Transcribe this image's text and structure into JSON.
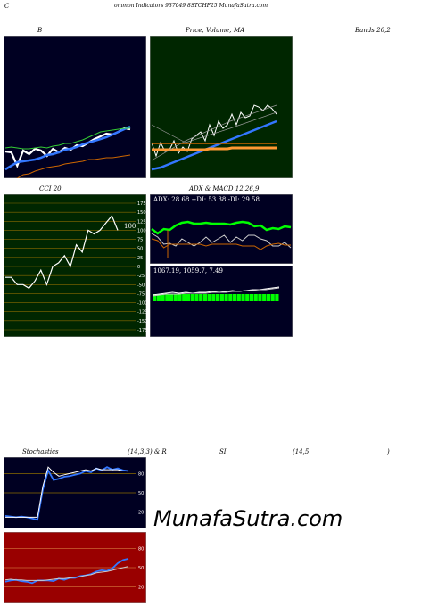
{
  "header": {
    "c": "C",
    "title": "ommon  Indicators 937049 8STCHF25 MunafaSutra.com"
  },
  "labels": {
    "b": "B",
    "price": "Price,",
    "volume": "Volume,",
    "ma": "MA",
    "bands": "Bands 20,2",
    "cci": "CCI 20",
    "adx_macd": "ADX  & MACD 12,26,9",
    "stoch": "Stochastics",
    "stoch_params": "(14,3,3) & R",
    "rsi": "SI",
    "rsi_params": "(14,5",
    "rsi_close": ")",
    "watermark": "MunafaSutra.com"
  },
  "colors": {
    "dark_bg": "#000022",
    "green_bg": "#002600",
    "red_bg": "#990000",
    "white": "#ffffff",
    "blue": "#3377ff",
    "green": "#00ff00",
    "orange": "#cc6600"
  },
  "chart_data": [
    {
      "id": "bollinger",
      "type": "line",
      "series": [
        {
          "color": "#ffffff",
          "values": [
            130,
            131,
            146,
            129,
            133,
            127,
            129,
            135,
            127,
            131,
            126,
            128,
            123,
            124,
            120,
            116,
            113,
            110,
            111,
            108,
            104,
            105
          ]
        },
        {
          "color": "#3377ff",
          "values": [
            150,
            146,
            142,
            141,
            140,
            139,
            137,
            134,
            133,
            131,
            128,
            127,
            125,
            122,
            120,
            118,
            116,
            114,
            111,
            108,
            105,
            102
          ]
        },
        {
          "color": "#cc6600",
          "values": [
            176,
            168,
            160,
            156,
            155,
            152,
            150,
            148,
            147,
            146,
            144,
            143,
            142,
            141,
            139,
            139,
            138,
            137,
            137,
            136,
            135,
            134
          ]
        },
        {
          "color": "#33cc33",
          "values": [
            126,
            125,
            126,
            127,
            127,
            126,
            125,
            126,
            124,
            123,
            121,
            121,
            119,
            117,
            114,
            111,
            108,
            107,
            106,
            105,
            104,
            104
          ]
        }
      ]
    },
    {
      "id": "price-volume-ma",
      "type": "line",
      "series": [
        {
          "color": "#ffffff",
          "values": [
            120,
            135,
            120,
            130,
            128,
            118,
            132,
            125,
            130,
            116,
            112,
            108,
            118,
            100,
            112,
            96,
            104,
            100,
            88,
            100,
            86,
            92,
            90,
            78,
            80,
            84,
            78,
            82,
            88
          ]
        },
        {
          "color": "#3377ff",
          "values": [
            150,
            149,
            148,
            146,
            144,
            142,
            140,
            138,
            136,
            134,
            132,
            130,
            128,
            126,
            124,
            122,
            120,
            118,
            116,
            114,
            112,
            110,
            108,
            106,
            104,
            102,
            100,
            98,
            96
          ]
        },
        {
          "color": "#ff9933",
          "values": [
            128,
            128,
            128,
            128,
            128,
            128,
            128,
            128,
            128,
            128,
            128,
            128,
            128,
            127,
            127,
            127,
            127,
            127,
            126,
            126,
            126,
            126,
            126,
            126,
            126,
            126,
            126,
            126,
            126
          ]
        },
        {
          "color": "#cc6600",
          "values": [
            121,
            121,
            121,
            121,
            121,
            121,
            121,
            121,
            121,
            121,
            121,
            121,
            121,
            121,
            121,
            121,
            121,
            121,
            121,
            121,
            121,
            121,
            121,
            121,
            121,
            121,
            121,
            121,
            121
          ]
        }
      ]
    },
    {
      "id": "cci",
      "type": "line",
      "ylim": [
        -175,
        175
      ],
      "yticks": [
        175,
        150,
        125,
        100,
        75,
        50,
        25,
        0,
        -25,
        -50,
        -75,
        -100,
        -125,
        -150,
        -175
      ],
      "value_label": "100",
      "series": [
        {
          "color": "#ffffff",
          "values": [
            -30,
            -30,
            -50,
            -50,
            -60,
            -40,
            -10,
            -50,
            0,
            10,
            30,
            0,
            60,
            40,
            100,
            90,
            100,
            120,
            140,
            100
          ]
        }
      ]
    },
    {
      "id": "adx",
      "type": "line",
      "label": "ADX: 28.68  +DI: 53.38  -DI: 29.58",
      "series": [
        {
          "color": "#00ff00",
          "values": [
            39,
            44,
            39,
            40,
            35,
            32,
            31,
            33,
            33,
            32,
            33,
            33,
            33,
            34,
            32,
            31,
            32,
            36,
            35,
            40,
            38,
            39,
            36,
            37
          ]
        },
        {
          "color": "#cccccc",
          "values": [
            44,
            48,
            56,
            55,
            58,
            50,
            54,
            58,
            54,
            48,
            54,
            50,
            46,
            54,
            48,
            52,
            46,
            46,
            50,
            52,
            58,
            58,
            54,
            60
          ]
        },
        {
          "color": "#cc6600",
          "values": [
            50,
            52,
            60,
            56,
            56,
            56,
            56,
            56,
            56,
            58,
            56,
            56,
            56,
            56,
            56,
            58,
            58,
            58,
            62,
            58,
            56,
            55,
            57,
            57
          ]
        }
      ]
    },
    {
      "id": "macd",
      "type": "bar",
      "label": "1067.19,  1059.7,  7.49",
      "values": [
        8,
        8,
        8,
        8,
        8,
        8,
        8,
        8,
        8,
        8,
        8,
        8,
        8,
        8,
        8,
        8,
        8,
        8,
        8,
        8,
        8,
        8,
        8,
        8,
        8,
        8,
        8,
        8,
        8,
        8
      ],
      "series": [
        {
          "color": "#ffffff",
          "values": [
            33,
            32,
            31,
            30,
            31,
            30,
            31,
            30,
            30,
            29,
            30,
            29,
            28,
            29,
            28,
            27,
            27,
            26,
            25,
            24
          ]
        },
        {
          "color": "#cccccc",
          "values": [
            34,
            33,
            32,
            32,
            32,
            31,
            31,
            31,
            31,
            30,
            30,
            30,
            29,
            29,
            28,
            28,
            27,
            27,
            26,
            25
          ]
        }
      ]
    },
    {
      "id": "stochastics",
      "type": "line",
      "ylim": [
        0,
        100
      ],
      "yticks": [
        80,
        50,
        20
      ],
      "series": [
        {
          "color": "#3377ff",
          "values": [
            14,
            13,
            12,
            13,
            12,
            10,
            8,
            55,
            85,
            70,
            72,
            75,
            76,
            78,
            80,
            84,
            82,
            88,
            85,
            90,
            86,
            88,
            85,
            84
          ]
        },
        {
          "color": "#ffffff",
          "values": [
            12,
            12,
            12,
            12,
            12,
            12,
            12,
            60,
            90,
            82,
            76,
            78,
            80,
            82,
            84,
            86,
            84,
            88,
            86,
            86,
            86,
            86,
            84,
            84
          ]
        }
      ]
    },
    {
      "id": "rsi",
      "type": "line",
      "ylim": [
        0,
        100
      ],
      "yticks": [
        80,
        50,
        20
      ],
      "series": [
        {
          "color": "#3377ff",
          "values": [
            28,
            30,
            31,
            29,
            28,
            26,
            30,
            30,
            30,
            29,
            33,
            31,
            34,
            34,
            37,
            38,
            40,
            44,
            46,
            45,
            49,
            57,
            62,
            64
          ]
        },
        {
          "color": "#cccccc",
          "values": [
            31,
            32,
            31,
            31,
            30,
            30,
            30,
            30,
            31,
            32,
            33,
            33,
            34,
            35,
            36,
            38,
            39,
            42,
            43,
            44,
            46,
            48,
            50,
            52
          ]
        }
      ]
    }
  ]
}
